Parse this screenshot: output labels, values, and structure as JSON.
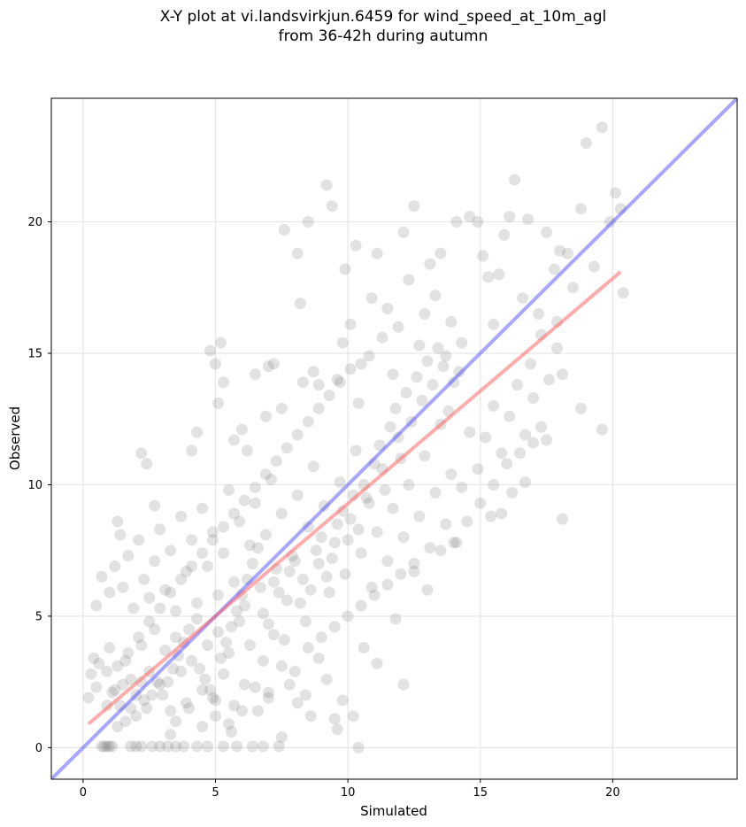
{
  "chart_data": {
    "type": "scatter",
    "title_line1": "X-Y plot at vi.landsvirkjun.6459 for wind_speed_at_10m_agl",
    "title_line2": "from 36-42h during autumn",
    "xlabel": "Simulated",
    "ylabel": "Observed",
    "xlim": [
      -1.2,
      24.7
    ],
    "ylim": [
      -1.2,
      24.7
    ],
    "xticks": [
      0,
      5,
      10,
      15,
      20
    ],
    "yticks": [
      0,
      5,
      10,
      15,
      20
    ],
    "grid": true,
    "point_color": "#555555",
    "identity_line": {
      "color": "#3b3bff",
      "from": [
        -1.2,
        -1.2
      ],
      "to": [
        24.7,
        24.7
      ]
    },
    "fit_line": {
      "color": "#ff5a5a",
      "from": [
        0.2,
        0.9
      ],
      "to": [
        20.3,
        18.1
      ]
    },
    "points": [
      [
        0.7,
        0.05
      ],
      [
        0.8,
        0.05
      ],
      [
        0.9,
        0.05
      ],
      [
        1.0,
        0.05
      ],
      [
        1.1,
        0.05
      ],
      [
        1.8,
        0.05
      ],
      [
        2.0,
        0.05
      ],
      [
        2.2,
        0.05
      ],
      [
        2.6,
        0.05
      ],
      [
        2.9,
        0.05
      ],
      [
        3.2,
        0.05
      ],
      [
        3.5,
        0.05
      ],
      [
        3.8,
        0.05
      ],
      [
        4.3,
        0.05
      ],
      [
        4.7,
        0.05
      ],
      [
        5.3,
        0.05
      ],
      [
        5.8,
        0.05
      ],
      [
        6.4,
        0.05
      ],
      [
        6.8,
        0.05
      ],
      [
        7.4,
        0.05
      ],
      [
        10.4,
        0.0
      ],
      [
        7.5,
        0.4
      ],
      [
        9.6,
        0.7
      ],
      [
        3.3,
        0.5
      ],
      [
        5.6,
        0.6
      ],
      [
        1.3,
        0.8
      ],
      [
        0.2,
        1.9
      ],
      [
        0.5,
        2.3
      ],
      [
        0.3,
        2.8
      ],
      [
        0.6,
        3.2
      ],
      [
        0.4,
        3.4
      ],
      [
        0.9,
        2.9
      ],
      [
        1.0,
        3.8
      ],
      [
        1.2,
        2.2
      ],
      [
        1.4,
        1.6
      ],
      [
        1.6,
        3.3
      ],
      [
        1.8,
        2.6
      ],
      [
        2.0,
        1.2
      ],
      [
        2.2,
        3.9
      ],
      [
        2.3,
        1.8
      ],
      [
        2.5,
        2.9
      ],
      [
        2.7,
        4.5
      ],
      [
        2.9,
        2.4
      ],
      [
        3.1,
        3.7
      ],
      [
        3.3,
        1.4
      ],
      [
        3.5,
        4.2
      ],
      [
        3.7,
        2.9
      ],
      [
        3.9,
        1.7
      ],
      [
        4.1,
        3.3
      ],
      [
        4.3,
        4.9
      ],
      [
        4.5,
        2.2
      ],
      [
        4.7,
        3.9
      ],
      [
        4.9,
        1.9
      ],
      [
        5.1,
        4.4
      ],
      [
        5.3,
        2.8
      ],
      [
        5.5,
        3.6
      ],
      [
        5.7,
        1.6
      ],
      [
        5.9,
        4.8
      ],
      [
        6.1,
        2.4
      ],
      [
        6.3,
        3.9
      ],
      [
        6.6,
        1.4
      ],
      [
        6.8,
        3.3
      ],
      [
        7.0,
        2.1
      ],
      [
        7.2,
        4.3
      ],
      [
        7.5,
        3.1
      ],
      [
        7.8,
        2.4
      ],
      [
        8.1,
        1.7
      ],
      [
        8.4,
        2.0
      ],
      [
        8.6,
        1.2
      ],
      [
        8.9,
        3.4
      ],
      [
        9.2,
        2.6
      ],
      [
        9.5,
        1.1
      ],
      [
        9.8,
        1.8
      ],
      [
        10.2,
        1.2
      ],
      [
        10.6,
        3.8
      ],
      [
        11.1,
        3.2
      ],
      [
        11.8,
        4.9
      ],
      [
        12.1,
        2.4
      ],
      [
        0.5,
        5.4
      ],
      [
        0.7,
        6.5
      ],
      [
        1.0,
        5.9
      ],
      [
        1.2,
        6.9
      ],
      [
        1.5,
        6.1
      ],
      [
        1.7,
        7.3
      ],
      [
        1.9,
        5.3
      ],
      [
        2.1,
        7.9
      ],
      [
        2.3,
        6.4
      ],
      [
        2.5,
        5.7
      ],
      [
        2.7,
        7.1
      ],
      [
        2.9,
        8.3
      ],
      [
        3.1,
        6.0
      ],
      [
        3.3,
        7.5
      ],
      [
        3.5,
        5.2
      ],
      [
        3.7,
        8.8
      ],
      [
        3.9,
        6.7
      ],
      [
        4.1,
        7.9
      ],
      [
        4.3,
        5.5
      ],
      [
        4.5,
        9.1
      ],
      [
        4.7,
        6.9
      ],
      [
        4.9,
        8.2
      ],
      [
        5.1,
        5.8
      ],
      [
        5.3,
        7.4
      ],
      [
        5.5,
        9.8
      ],
      [
        5.7,
        6.3
      ],
      [
        5.9,
        8.6
      ],
      [
        6.1,
        5.4
      ],
      [
        6.3,
        7.7
      ],
      [
        6.5,
        9.3
      ],
      [
        6.7,
        6.1
      ],
      [
        6.9,
        8.1
      ],
      [
        7.1,
        10.2
      ],
      [
        7.3,
        6.8
      ],
      [
        7.5,
        8.9
      ],
      [
        7.7,
        5.6
      ],
      [
        7.9,
        7.3
      ],
      [
        8.1,
        9.6
      ],
      [
        8.3,
        6.4
      ],
      [
        8.5,
        8.4
      ],
      [
        8.7,
        10.7
      ],
      [
        8.9,
        7.0
      ],
      [
        9.1,
        9.2
      ],
      [
        9.3,
        5.9
      ],
      [
        9.5,
        7.8
      ],
      [
        9.7,
        10.1
      ],
      [
        9.9,
        6.6
      ],
      [
        10.1,
        8.7
      ],
      [
        10.3,
        11.3
      ],
      [
        10.5,
        7.4
      ],
      [
        10.7,
        9.5
      ],
      [
        10.9,
        6.1
      ],
      [
        11.1,
        8.2
      ],
      [
        11.3,
        10.6
      ],
      [
        11.5,
        7.1
      ],
      [
        11.7,
        9.1
      ],
      [
        11.9,
        11.8
      ],
      [
        12.1,
        8.0
      ],
      [
        12.3,
        10.0
      ],
      [
        12.5,
        6.7
      ],
      [
        12.7,
        8.8
      ],
      [
        12.9,
        11.1
      ],
      [
        13.1,
        7.6
      ],
      [
        13.3,
        9.7
      ],
      [
        13.5,
        12.3
      ],
      [
        13.7,
        8.5
      ],
      [
        13.9,
        10.4
      ],
      [
        14.1,
        7.8
      ],
      [
        14.3,
        9.9
      ],
      [
        14.6,
        12.0
      ],
      [
        14.9,
        10.6
      ],
      [
        15.2,
        11.8
      ],
      [
        15.5,
        13.0
      ],
      [
        15.8,
        11.2
      ],
      [
        16.1,
        12.6
      ],
      [
        16.4,
        13.8
      ],
      [
        16.7,
        11.9
      ],
      [
        17.0,
        13.3
      ],
      [
        17.3,
        12.2
      ],
      [
        17.6,
        14.0
      ],
      [
        17.9,
        15.2
      ],
      [
        18.1,
        8.7
      ],
      [
        18.8,
        12.9
      ],
      [
        19.6,
        12.1
      ],
      [
        2.2,
        11.2
      ],
      [
        2.4,
        10.8
      ],
      [
        2.7,
        9.2
      ],
      [
        1.3,
        8.6
      ],
      [
        1.4,
        8.1
      ],
      [
        4.1,
        11.3
      ],
      [
        4.3,
        12.0
      ],
      [
        4.8,
        15.1
      ],
      [
        5.0,
        14.6
      ],
      [
        5.1,
        13.1
      ],
      [
        5.2,
        15.4
      ],
      [
        5.3,
        13.9
      ],
      [
        5.7,
        11.7
      ],
      [
        6.0,
        12.1
      ],
      [
        6.2,
        11.3
      ],
      [
        6.5,
        14.2
      ],
      [
        6.9,
        12.6
      ],
      [
        7.0,
        14.5
      ],
      [
        7.2,
        14.6
      ],
      [
        7.5,
        12.9
      ],
      [
        7.6,
        19.7
      ],
      [
        8.1,
        18.8
      ],
      [
        8.3,
        13.9
      ],
      [
        8.7,
        14.3
      ],
      [
        8.9,
        13.8
      ],
      [
        8.2,
        16.9
      ],
      [
        8.5,
        20.0
      ],
      [
        9.2,
        21.4
      ],
      [
        9.4,
        20.6
      ],
      [
        9.6,
        14.0
      ],
      [
        9.8,
        15.4
      ],
      [
        9.9,
        18.2
      ],
      [
        10.1,
        16.1
      ],
      [
        10.3,
        19.1
      ],
      [
        10.4,
        13.1
      ],
      [
        10.8,
        14.9
      ],
      [
        10.9,
        17.1
      ],
      [
        11.1,
        18.8
      ],
      [
        11.3,
        15.6
      ],
      [
        11.5,
        16.7
      ],
      [
        11.7,
        14.2
      ],
      [
        11.9,
        16.0
      ],
      [
        12.1,
        19.6
      ],
      [
        12.3,
        17.8
      ],
      [
        12.5,
        20.6
      ],
      [
        12.7,
        15.3
      ],
      [
        12.9,
        16.5
      ],
      [
        13.1,
        18.4
      ],
      [
        13.3,
        17.2
      ],
      [
        13.5,
        18.8
      ],
      [
        13.7,
        14.9
      ],
      [
        13.9,
        16.2
      ],
      [
        14.1,
        20.0
      ],
      [
        14.3,
        15.4
      ],
      [
        14.6,
        20.2
      ],
      [
        14.9,
        20.0
      ],
      [
        15.1,
        18.7
      ],
      [
        15.3,
        17.9
      ],
      [
        15.5,
        16.1
      ],
      [
        15.7,
        18.0
      ],
      [
        15.9,
        19.5
      ],
      [
        16.1,
        20.2
      ],
      [
        16.3,
        21.6
      ],
      [
        16.6,
        17.1
      ],
      [
        16.8,
        20.1
      ],
      [
        17.2,
        16.5
      ],
      [
        17.5,
        19.6
      ],
      [
        17.8,
        18.2
      ],
      [
        18.0,
        18.9
      ],
      [
        18.3,
        18.8
      ],
      [
        18.5,
        17.5
      ],
      [
        18.8,
        20.5
      ],
      [
        19.0,
        23.0
      ],
      [
        19.3,
        18.3
      ],
      [
        19.6,
        23.6
      ],
      [
        19.9,
        20.0
      ],
      [
        20.1,
        21.1
      ],
      [
        20.3,
        20.5
      ],
      [
        20.4,
        17.3
      ],
      [
        17.9,
        16.2
      ],
      [
        18.1,
        14.2
      ],
      [
        16.9,
        14.6
      ],
      [
        17.3,
        15.7
      ],
      [
        4.4,
        3.0
      ],
      [
        4.6,
        2.6
      ],
      [
        4.8,
        2.2
      ],
      [
        5.0,
        1.8
      ],
      [
        5.2,
        3.4
      ],
      [
        5.4,
        4.0
      ],
      [
        5.6,
        4.6
      ],
      [
        5.8,
        5.2
      ],
      [
        6.0,
        5.8
      ],
      [
        6.2,
        6.4
      ],
      [
        6.4,
        7.0
      ],
      [
        6.6,
        7.6
      ],
      [
        6.8,
        5.1
      ],
      [
        7.0,
        4.7
      ],
      [
        7.2,
        6.3
      ],
      [
        7.4,
        5.9
      ],
      [
        7.6,
        4.1
      ],
      [
        7.8,
        6.7
      ],
      [
        8.0,
        7.1
      ],
      [
        8.2,
        5.5
      ],
      [
        8.4,
        4.8
      ],
      [
        8.6,
        6.0
      ],
      [
        8.8,
        7.5
      ],
      [
        9.0,
        8.0
      ],
      [
        9.2,
        6.5
      ],
      [
        9.4,
        7.2
      ],
      [
        9.6,
        8.5
      ],
      [
        9.8,
        9.0
      ],
      [
        10.0,
        7.9
      ],
      [
        10.2,
        9.6
      ],
      [
        10.4,
        8.3
      ],
      [
        10.6,
        10.0
      ],
      [
        10.8,
        9.3
      ],
      [
        11.0,
        10.8
      ],
      [
        11.2,
        11.5
      ],
      [
        11.4,
        9.8
      ],
      [
        11.6,
        12.2
      ],
      [
        11.8,
        12.9
      ],
      [
        12.0,
        11.0
      ],
      [
        12.2,
        13.5
      ],
      [
        12.4,
        12.4
      ],
      [
        12.6,
        14.1
      ],
      [
        12.8,
        13.2
      ],
      [
        13.0,
        14.7
      ],
      [
        13.2,
        13.8
      ],
      [
        13.4,
        15.2
      ],
      [
        13.6,
        14.5
      ],
      [
        13.8,
        12.8
      ],
      [
        14.0,
        13.9
      ],
      [
        14.2,
        14.3
      ],
      [
        3.0,
        2.0
      ],
      [
        3.2,
        2.5
      ],
      [
        3.4,
        3.0
      ],
      [
        3.6,
        3.5
      ],
      [
        3.8,
        4.0
      ],
      [
        4.0,
        4.5
      ],
      [
        2.4,
        1.5
      ],
      [
        2.6,
        2.0
      ],
      [
        2.8,
        2.5
      ],
      [
        1.6,
        1.0
      ],
      [
        1.8,
        1.5
      ],
      [
        2.0,
        2.0
      ],
      [
        2.2,
        2.5
      ],
      [
        1.1,
        2.1
      ],
      [
        1.5,
        2.4
      ],
      [
        0.9,
        1.6
      ],
      [
        1.3,
        3.1
      ],
      [
        1.7,
        3.6
      ],
      [
        2.1,
        4.2
      ],
      [
        2.5,
        4.8
      ],
      [
        2.9,
        5.3
      ],
      [
        3.3,
        5.9
      ],
      [
        3.7,
        6.4
      ],
      [
        4.1,
        6.9
      ],
      [
        4.5,
        7.4
      ],
      [
        4.9,
        7.9
      ],
      [
        5.3,
        8.4
      ],
      [
        5.7,
        8.9
      ],
      [
        6.1,
        9.4
      ],
      [
        6.5,
        9.9
      ],
      [
        6.9,
        10.4
      ],
      [
        7.3,
        10.9
      ],
      [
        7.7,
        11.4
      ],
      [
        8.1,
        11.9
      ],
      [
        8.5,
        12.4
      ],
      [
        8.9,
        12.9
      ],
      [
        9.3,
        13.4
      ],
      [
        9.7,
        13.9
      ],
      [
        10.1,
        14.4
      ],
      [
        10.5,
        14.6
      ],
      [
        3.5,
        1.0
      ],
      [
        4.0,
        1.5
      ],
      [
        4.5,
        0.8
      ],
      [
        5.0,
        1.2
      ],
      [
        5.5,
        0.9
      ],
      [
        6.0,
        1.4
      ],
      [
        6.5,
        2.3
      ],
      [
        7.0,
        1.9
      ],
      [
        8.0,
        2.9
      ],
      [
        8.5,
        3.8
      ],
      [
        9.0,
        4.2
      ],
      [
        9.5,
        4.6
      ],
      [
        10.0,
        5.0
      ],
      [
        10.5,
        5.4
      ],
      [
        11.0,
        5.8
      ],
      [
        11.5,
        6.2
      ],
      [
        12.0,
        6.6
      ],
      [
        12.5,
        7.0
      ],
      [
        13.0,
        6.0
      ],
      [
        13.5,
        7.5
      ],
      [
        14.0,
        7.8
      ],
      [
        14.5,
        8.6
      ],
      [
        15.0,
        9.3
      ],
      [
        15.5,
        10.0
      ],
      [
        16.0,
        10.8
      ],
      [
        16.5,
        11.2
      ],
      [
        17.0,
        11.6
      ],
      [
        17.5,
        11.7
      ],
      [
        16.7,
        10.1
      ],
      [
        16.2,
        9.7
      ],
      [
        15.4,
        8.8
      ],
      [
        15.8,
        8.9
      ]
    ]
  }
}
